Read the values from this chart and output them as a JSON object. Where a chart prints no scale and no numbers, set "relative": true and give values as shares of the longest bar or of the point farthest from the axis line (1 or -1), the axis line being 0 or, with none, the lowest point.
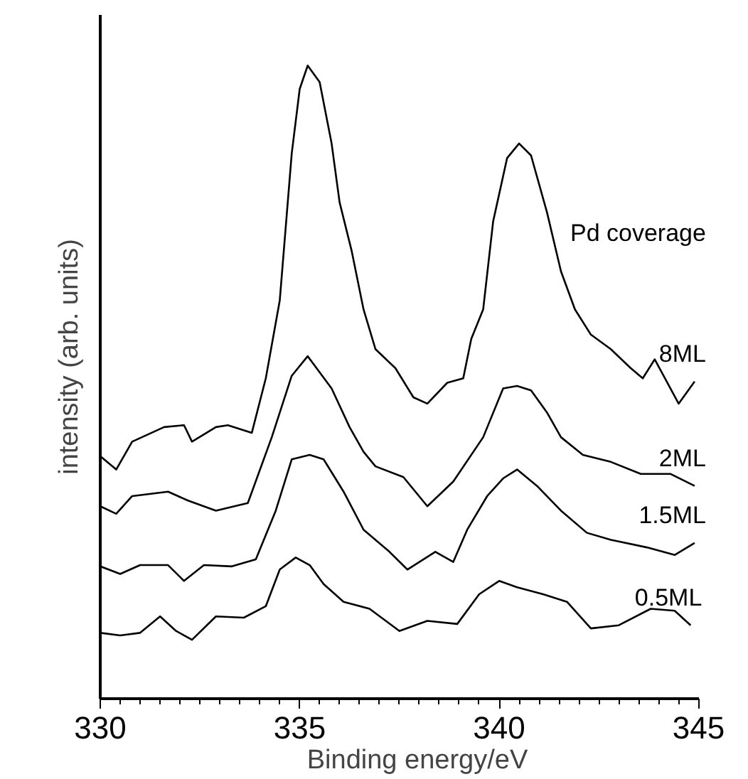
{
  "chart_data": {
    "type": "line",
    "relative": true,
    "xlabel": "Binding energy/eV",
    "ylabel": "intensity (arb. units)",
    "xlim": [
      330,
      345
    ],
    "xticks": [
      330,
      335,
      340,
      345
    ],
    "tick_labels": "x",
    "grid": false,
    "annotations": [
      "Pd coverage"
    ],
    "series": [
      {
        "name": "8ML",
        "color": "#000000",
        "x": [
          330.0,
          330.4,
          330.8,
          331.6,
          332.1,
          332.3,
          332.9,
          333.2,
          333.8,
          334.15,
          334.5,
          334.8,
          335.0,
          335.2,
          335.5,
          335.8,
          336.0,
          336.3,
          336.6,
          336.9,
          337.4,
          337.85,
          338.2,
          338.7,
          339.1,
          339.3,
          339.6,
          339.85,
          340.2,
          340.5,
          340.8,
          341.2,
          341.55,
          341.9,
          342.3,
          342.8,
          343.3,
          343.6,
          343.9,
          344.5,
          344.9
        ],
        "values": [
          0.383,
          0.362,
          0.406,
          0.429,
          0.432,
          0.406,
          0.429,
          0.432,
          0.42,
          0.506,
          0.629,
          0.861,
          0.963,
          1.0,
          0.974,
          0.877,
          0.784,
          0.708,
          0.615,
          0.552,
          0.522,
          0.476,
          0.466,
          0.499,
          0.506,
          0.568,
          0.615,
          0.754,
          0.854,
          0.877,
          0.858,
          0.768,
          0.675,
          0.615,
          0.575,
          0.552,
          0.522,
          0.506,
          0.536,
          0.466,
          0.501
        ]
      },
      {
        "name": "2ML",
        "color": "#000000",
        "x": [
          330.0,
          330.4,
          330.8,
          331.7,
          332.2,
          332.9,
          333.7,
          334.3,
          334.8,
          335.2,
          335.8,
          336.25,
          336.6,
          336.9,
          337.6,
          338.2,
          338.85,
          339.6,
          340.1,
          340.45,
          340.8,
          341.2,
          341.55,
          342.1,
          342.8,
          343.55,
          344.3,
          344.9
        ],
        "values": [
          0.304,
          0.292,
          0.32,
          0.327,
          0.313,
          0.297,
          0.309,
          0.413,
          0.51,
          0.541,
          0.49,
          0.429,
          0.39,
          0.367,
          0.35,
          0.304,
          0.343,
          0.413,
          0.49,
          0.494,
          0.487,
          0.452,
          0.413,
          0.385,
          0.374,
          0.355,
          0.355,
          0.336
        ]
      },
      {
        "name": "1.5ML",
        "color": "#000000",
        "x": [
          330.0,
          330.5,
          331.0,
          331.7,
          332.1,
          332.6,
          333.3,
          333.9,
          334.4,
          334.8,
          335.25,
          335.6,
          336.1,
          336.6,
          337.25,
          337.7,
          338.4,
          338.85,
          339.2,
          339.7,
          340.1,
          340.45,
          340.95,
          341.55,
          342.2,
          342.8,
          343.7,
          344.4,
          344.9
        ],
        "values": [
          0.209,
          0.197,
          0.211,
          0.211,
          0.186,
          0.211,
          0.209,
          0.22,
          0.297,
          0.378,
          0.385,
          0.378,
          0.327,
          0.267,
          0.232,
          0.204,
          0.232,
          0.216,
          0.267,
          0.32,
          0.348,
          0.362,
          0.336,
          0.297,
          0.262,
          0.251,
          0.239,
          0.227,
          0.246
        ]
      },
      {
        "name": "0.5ML",
        "color": "#000000",
        "x": [
          330.0,
          330.5,
          331.0,
          331.5,
          331.9,
          332.3,
          332.9,
          333.6,
          334.15,
          334.5,
          334.9,
          335.25,
          335.6,
          336.1,
          336.75,
          337.5,
          338.2,
          338.95,
          339.5,
          340.0,
          340.45,
          341.1,
          341.7,
          342.3,
          343.0,
          343.8,
          344.4,
          344.8
        ],
        "values": [
          0.104,
          0.1,
          0.104,
          0.13,
          0.107,
          0.093,
          0.13,
          0.128,
          0.146,
          0.204,
          0.223,
          0.211,
          0.181,
          0.153,
          0.142,
          0.107,
          0.123,
          0.118,
          0.165,
          0.186,
          0.176,
          0.165,
          0.153,
          0.111,
          0.116,
          0.142,
          0.139,
          0.116
        ]
      }
    ]
  }
}
